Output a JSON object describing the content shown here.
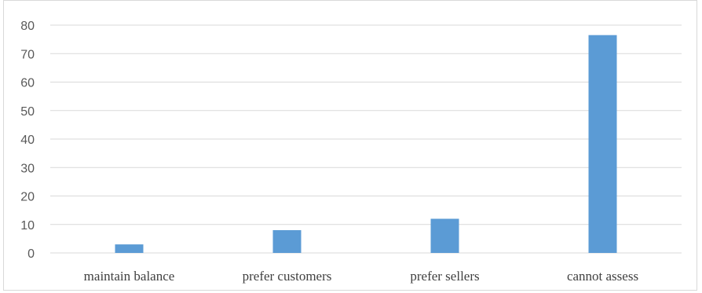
{
  "chart_data": {
    "type": "bar",
    "categories": [
      "maintain balance",
      "prefer customers",
      "prefer sellers",
      "cannot assess"
    ],
    "values": [
      3,
      8,
      12,
      76.5
    ],
    "yticks": [
      "0",
      "10",
      "20",
      "30",
      "40",
      "50",
      "60",
      "70",
      "80"
    ],
    "ylim": [
      0,
      80
    ],
    "grid": true,
    "legend": "none",
    "colors": {
      "bar": "#5b9bd5",
      "grid": "#d9d9d9",
      "axis": "#d9d9d9"
    }
  }
}
